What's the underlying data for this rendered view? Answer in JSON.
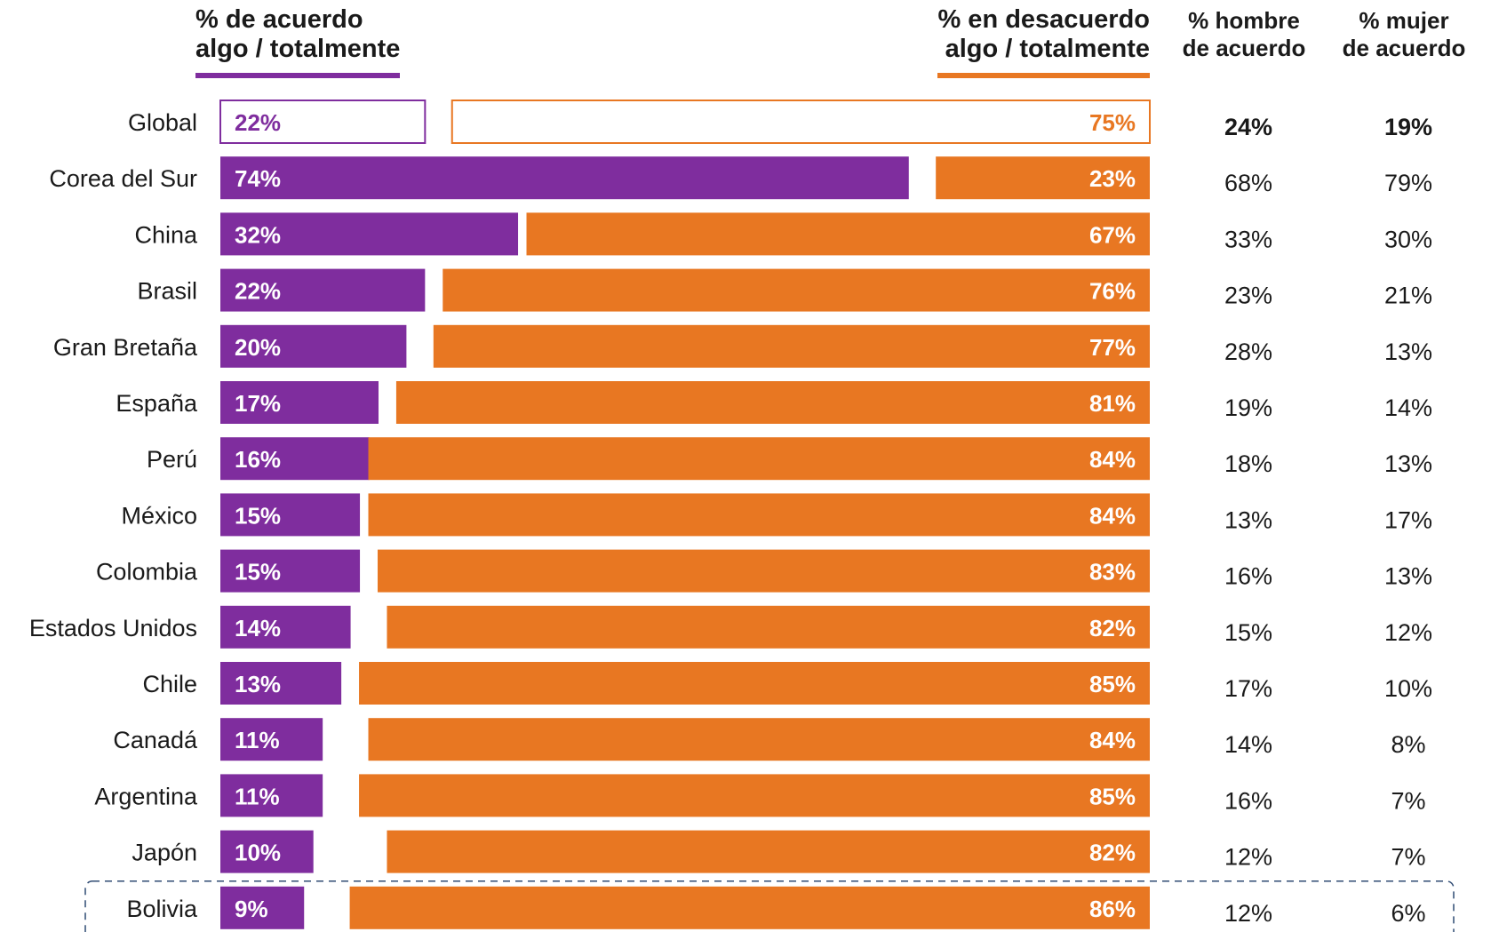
{
  "headers": {
    "agree_line1": "% de acuerdo",
    "agree_line2": "algo / totalmente",
    "disagree_line1": "% en desacuerdo",
    "disagree_line2": "algo / totalmente",
    "men_line1": "% hombre",
    "men_line2": "de acuerdo",
    "women_line1": "% mujer",
    "women_line2": "de acuerdo"
  },
  "colors": {
    "agree": "#7F2D9E",
    "disagree": "#E87722",
    "text": "#1a1a1a",
    "highlight_border": "#2F4B73"
  },
  "chart_data": {
    "type": "bar",
    "orientation": "horizontal-diverging",
    "categories": [
      "Global",
      "Corea del Sur",
      "China",
      "Brasil",
      "Gran Bretaña",
      "España",
      "Perú",
      "México",
      "Colombia",
      "Estados Unidos",
      "Chile",
      "Canadá",
      "Argentina",
      "Japón",
      "Bolivia"
    ],
    "series": [
      {
        "name": "% de acuerdo algo / totalmente",
        "values": [
          22,
          74,
          32,
          22,
          20,
          17,
          16,
          15,
          15,
          14,
          13,
          11,
          11,
          10,
          9
        ]
      },
      {
        "name": "% en desacuerdo algo / totalmente",
        "values": [
          75,
          23,
          67,
          76,
          77,
          81,
          84,
          84,
          83,
          82,
          85,
          84,
          85,
          82,
          86
        ]
      }
    ],
    "table_columns": [
      {
        "name": "% hombre de acuerdo",
        "values": [
          24,
          68,
          33,
          23,
          28,
          19,
          18,
          13,
          16,
          15,
          17,
          14,
          16,
          12,
          12
        ]
      },
      {
        "name": "% mujer de acuerdo",
        "values": [
          19,
          79,
          30,
          21,
          13,
          14,
          13,
          17,
          13,
          12,
          10,
          8,
          7,
          7,
          6
        ]
      }
    ],
    "value_suffix": "%",
    "outlined_category": "Global",
    "highlighted_category": "Bolivia",
    "xlim": [
      0,
      100
    ]
  }
}
